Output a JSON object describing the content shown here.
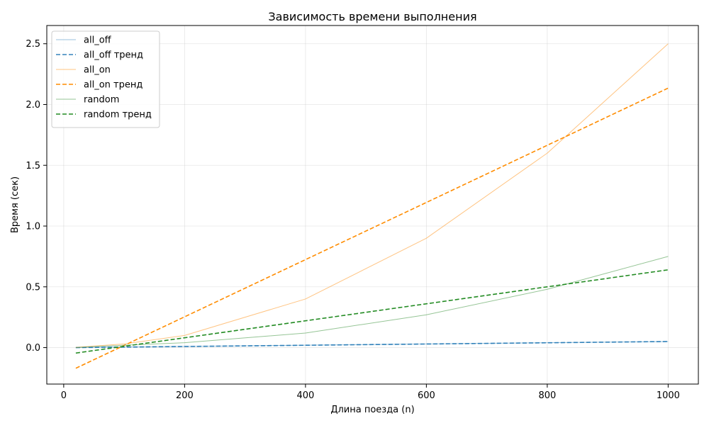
{
  "chart_data": {
    "type": "line",
    "title": "Зависимость времени выполнения",
    "xlabel": "Длина поезда (n)",
    "ylabel": "Время (сек)",
    "xlim": [
      -28,
      1050
    ],
    "ylim": [
      -0.3,
      2.65
    ],
    "xticks": [
      0,
      200,
      400,
      600,
      800,
      1000
    ],
    "xtick_labels": [
      "0",
      "200",
      "400",
      "600",
      "800",
      "1000"
    ],
    "yticks": [
      0.0,
      0.5,
      1.0,
      1.5,
      2.0,
      2.5
    ],
    "ytick_labels": [
      "0.0",
      "0.5",
      "1.0",
      "1.5",
      "2.0",
      "2.5"
    ],
    "grid": true,
    "legend_position": "top-left",
    "x": [
      20,
      100,
      200,
      400,
      600,
      800,
      1000
    ],
    "series": [
      {
        "name": "all_off",
        "style": "solid",
        "color": "#1f77b4",
        "opacity": 0.45,
        "x": [
          20,
          100,
          200,
          400,
          600,
          800,
          1000
        ],
        "values": [
          0.001,
          0.005,
          0.01,
          0.02,
          0.03,
          0.04,
          0.05
        ]
      },
      {
        "name": "all_off тренд",
        "style": "dashed",
        "color": "#1f77b4",
        "opacity": 0.9,
        "x": [
          20,
          1000
        ],
        "values": [
          0.0,
          0.05
        ]
      },
      {
        "name": "all_on",
        "style": "solid",
        "color": "#ff9d2e",
        "opacity": 0.6,
        "x": [
          20,
          100,
          200,
          400,
          600,
          800,
          1000
        ],
        "values": [
          0.002,
          0.03,
          0.1,
          0.4,
          0.9,
          1.6,
          2.5
        ]
      },
      {
        "name": "all_on тренд",
        "style": "dashed",
        "color": "#ff8c00",
        "opacity": 1,
        "x": [
          20,
          1000
        ],
        "values": [
          -0.17,
          2.135
        ]
      },
      {
        "name": "random",
        "style": "solid",
        "color": "#2e8b2e",
        "opacity": 0.5,
        "x": [
          20,
          100,
          200,
          400,
          600,
          800,
          1000
        ],
        "values": [
          0.001,
          0.02,
          0.04,
          0.12,
          0.27,
          0.48,
          0.75
        ]
      },
      {
        "name": "random тренд",
        "style": "dashed",
        "color": "#228b22",
        "opacity": 1,
        "x": [
          20,
          1000
        ],
        "values": [
          -0.045,
          0.64
        ]
      }
    ]
  }
}
